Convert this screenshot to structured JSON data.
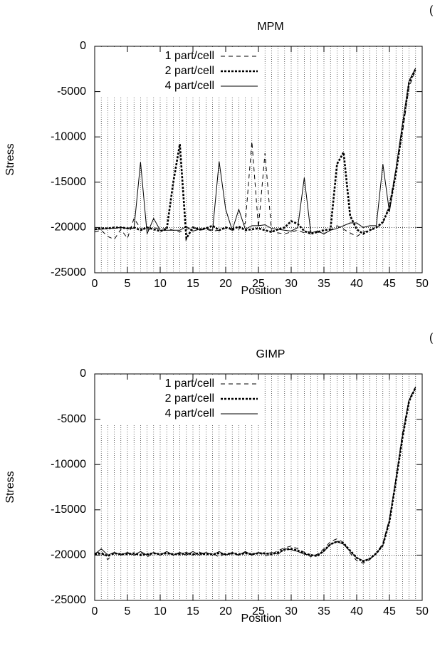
{
  "chart_data": [
    {
      "type": "line",
      "title": "MPM",
      "annotation": "(",
      "xlabel": "Position",
      "ylabel": "Stress",
      "xlim": [
        0,
        50
      ],
      "ylim": [
        -25000,
        0
      ],
      "xticks": [
        0,
        5,
        10,
        15,
        20,
        25,
        30,
        35,
        40,
        45,
        50
      ],
      "yticks": [
        -25000,
        -20000,
        -15000,
        -10000,
        -5000,
        0
      ],
      "x_minor_grid": [
        0,
        1,
        2,
        3,
        4,
        5,
        6,
        7,
        8,
        9,
        10,
        11,
        12,
        13,
        14,
        15,
        16,
        17,
        18,
        19,
        20,
        21,
        22,
        23,
        24,
        25,
        26,
        27,
        28,
        29,
        30,
        31,
        32,
        33,
        34,
        35,
        36,
        37,
        38,
        39,
        40,
        41,
        42,
        43,
        44,
        45,
        46,
        47,
        48,
        49,
        50
      ],
      "hline": -20000,
      "legend": "upper left",
      "x": [
        0,
        1,
        2,
        3,
        4,
        5,
        6,
        7,
        8,
        9,
        10,
        11,
        12,
        13,
        14,
        15,
        16,
        17,
        18,
        19,
        20,
        21,
        22,
        23,
        24,
        25,
        26,
        27,
        28,
        29,
        30,
        31,
        32,
        33,
        34,
        35,
        36,
        37,
        38,
        39,
        40,
        41,
        42,
        43,
        44,
        45,
        46,
        47,
        48,
        49
      ],
      "series": [
        {
          "name": "1 part/cell",
          "color": "#000000",
          "dash": "6,5",
          "width": 1,
          "values": [
            -20500,
            -20300,
            -21000,
            -21300,
            -20200,
            -21200,
            -19000,
            -20100,
            -20300,
            -20000,
            -20200,
            -20100,
            -20300,
            -20500,
            -20200,
            -20000,
            -20300,
            -20200,
            -20400,
            -20300,
            -20100,
            -20300,
            -20200,
            -19500,
            -10500,
            -20000,
            -11800,
            -20400,
            -20600,
            -20700,
            -20500,
            -20300,
            -20600,
            -20400,
            -20500,
            -20700,
            -20300,
            -19800,
            -20200,
            -20600,
            -21000,
            -20500,
            -20300,
            -20100,
            -19500,
            -17500,
            -13500,
            -9500,
            -4500,
            -2600
          ]
        },
        {
          "name": "2 part/cell",
          "color": "#000000",
          "dash": "3,2",
          "width": 2.6,
          "values": [
            -20200,
            -20100,
            -20100,
            -20000,
            -20000,
            -20100,
            -20000,
            -20300,
            -20000,
            -20200,
            -20400,
            -20200,
            -15000,
            -10800,
            -21200,
            -20000,
            -20200,
            -20100,
            -19800,
            -20300,
            -20000,
            -20200,
            -19900,
            -20300,
            -20200,
            -20100,
            -20300,
            -20500,
            -20200,
            -20000,
            -19300,
            -19600,
            -20400,
            -20700,
            -20500,
            -20300,
            -20200,
            -13000,
            -11700,
            -18700,
            -20200,
            -20700,
            -20300,
            -20000,
            -19400,
            -17800,
            -14000,
            -9000,
            -4000,
            -2500
          ]
        },
        {
          "name": "4 part/cell",
          "color": "#000000",
          "dash": "none",
          "width": 1,
          "values": [
            -20200,
            -20200,
            -20100,
            -20100,
            -20000,
            -20100,
            -20100,
            -12800,
            -20700,
            -19000,
            -20300,
            -20300,
            -20300,
            -20300,
            -19900,
            -20400,
            -20200,
            -20100,
            -20300,
            -12700,
            -18000,
            -20300,
            -18000,
            -20200,
            -19800,
            -19800,
            -19700,
            -20100,
            -20200,
            -20300,
            -20400,
            -20000,
            -14500,
            -20600,
            -20400,
            -20700,
            -20300,
            -20100,
            -19800,
            -19500,
            -19500,
            -20000,
            -19800,
            -19800,
            -13000,
            -18300,
            -13500,
            -8500,
            -3800,
            -2400
          ]
        }
      ]
    },
    {
      "type": "line",
      "title": "GIMP",
      "annotation": "(",
      "xlabel": "Position",
      "ylabel": "Stress",
      "xlim": [
        0,
        50
      ],
      "ylim": [
        -25000,
        0
      ],
      "xticks": [
        0,
        5,
        10,
        15,
        20,
        25,
        30,
        35,
        40,
        45,
        50
      ],
      "yticks": [
        -25000,
        -20000,
        -15000,
        -10000,
        -5000,
        0
      ],
      "x_minor_grid": [
        0,
        1,
        2,
        3,
        4,
        5,
        6,
        7,
        8,
        9,
        10,
        11,
        12,
        13,
        14,
        15,
        16,
        17,
        18,
        19,
        20,
        21,
        22,
        23,
        24,
        25,
        26,
        27,
        28,
        29,
        30,
        31,
        32,
        33,
        34,
        35,
        36,
        37,
        38,
        39,
        40,
        41,
        42,
        43,
        44,
        45,
        46,
        47,
        48,
        49,
        50
      ],
      "hline": -20000,
      "legend": "upper left",
      "x": [
        0,
        1,
        2,
        3,
        4,
        5,
        6,
        7,
        8,
        9,
        10,
        11,
        12,
        13,
        14,
        15,
        16,
        17,
        18,
        19,
        20,
        21,
        22,
        23,
        24,
        25,
        26,
        27,
        28,
        29,
        30,
        31,
        32,
        33,
        34,
        35,
        36,
        37,
        38,
        39,
        40,
        41,
        42,
        43,
        44,
        45,
        46,
        47,
        48,
        49
      ],
      "series": [
        {
          "name": "1 part/cell",
          "color": "#000000",
          "dash": "6,5",
          "width": 1,
          "values": [
            -19800,
            -19600,
            -20500,
            -19700,
            -19900,
            -19800,
            -20000,
            -19700,
            -20200,
            -19800,
            -19900,
            -19700,
            -20000,
            -19800,
            -19700,
            -20000,
            -19700,
            -19900,
            -19800,
            -20200,
            -19800,
            -19900,
            -20000,
            -19700,
            -19900,
            -19700,
            -20100,
            -19900,
            -19500,
            -19200,
            -19000,
            -19300,
            -19700,
            -20200,
            -19900,
            -19300,
            -18500,
            -18200,
            -18600,
            -19800,
            -20600,
            -20900,
            -20500,
            -19800,
            -18700,
            -16000,
            -11500,
            -6500,
            -2800,
            -1400
          ]
        },
        {
          "name": "2 part/cell",
          "color": "#000000",
          "dash": "3,2",
          "width": 2.6,
          "values": [
            -19900,
            -19800,
            -20100,
            -19800,
            -19900,
            -19900,
            -19800,
            -20000,
            -19900,
            -19800,
            -19900,
            -19800,
            -19900,
            -19900,
            -19800,
            -19900,
            -19800,
            -19900,
            -19900,
            -19800,
            -19900,
            -19800,
            -19900,
            -19800,
            -19900,
            -19800,
            -19800,
            -19900,
            -19700,
            -19400,
            -19300,
            -19500,
            -19800,
            -20000,
            -20100,
            -19500,
            -18800,
            -18500,
            -18700,
            -19500,
            -20300,
            -20700,
            -20400,
            -19800,
            -18900,
            -16300,
            -11800,
            -7000,
            -3000,
            -1500
          ]
        },
        {
          "name": "4 part/cell",
          "color": "#000000",
          "dash": "none",
          "width": 1,
          "values": [
            -19900,
            -19300,
            -20000,
            -19700,
            -20000,
            -19700,
            -20000,
            -19600,
            -20000,
            -19700,
            -20000,
            -19600,
            -20000,
            -19700,
            -20000,
            -19600,
            -20000,
            -19700,
            -20000,
            -19600,
            -20000,
            -19700,
            -20000,
            -19600,
            -20000,
            -19700,
            -19900,
            -19700,
            -19900,
            -19300,
            -19400,
            -19600,
            -19900,
            -20000,
            -20000,
            -19600,
            -18800,
            -18500,
            -18800,
            -19600,
            -20300,
            -20600,
            -20400,
            -19800,
            -18900,
            -16200,
            -11600,
            -6800,
            -2900,
            -1500
          ]
        }
      ]
    }
  ]
}
